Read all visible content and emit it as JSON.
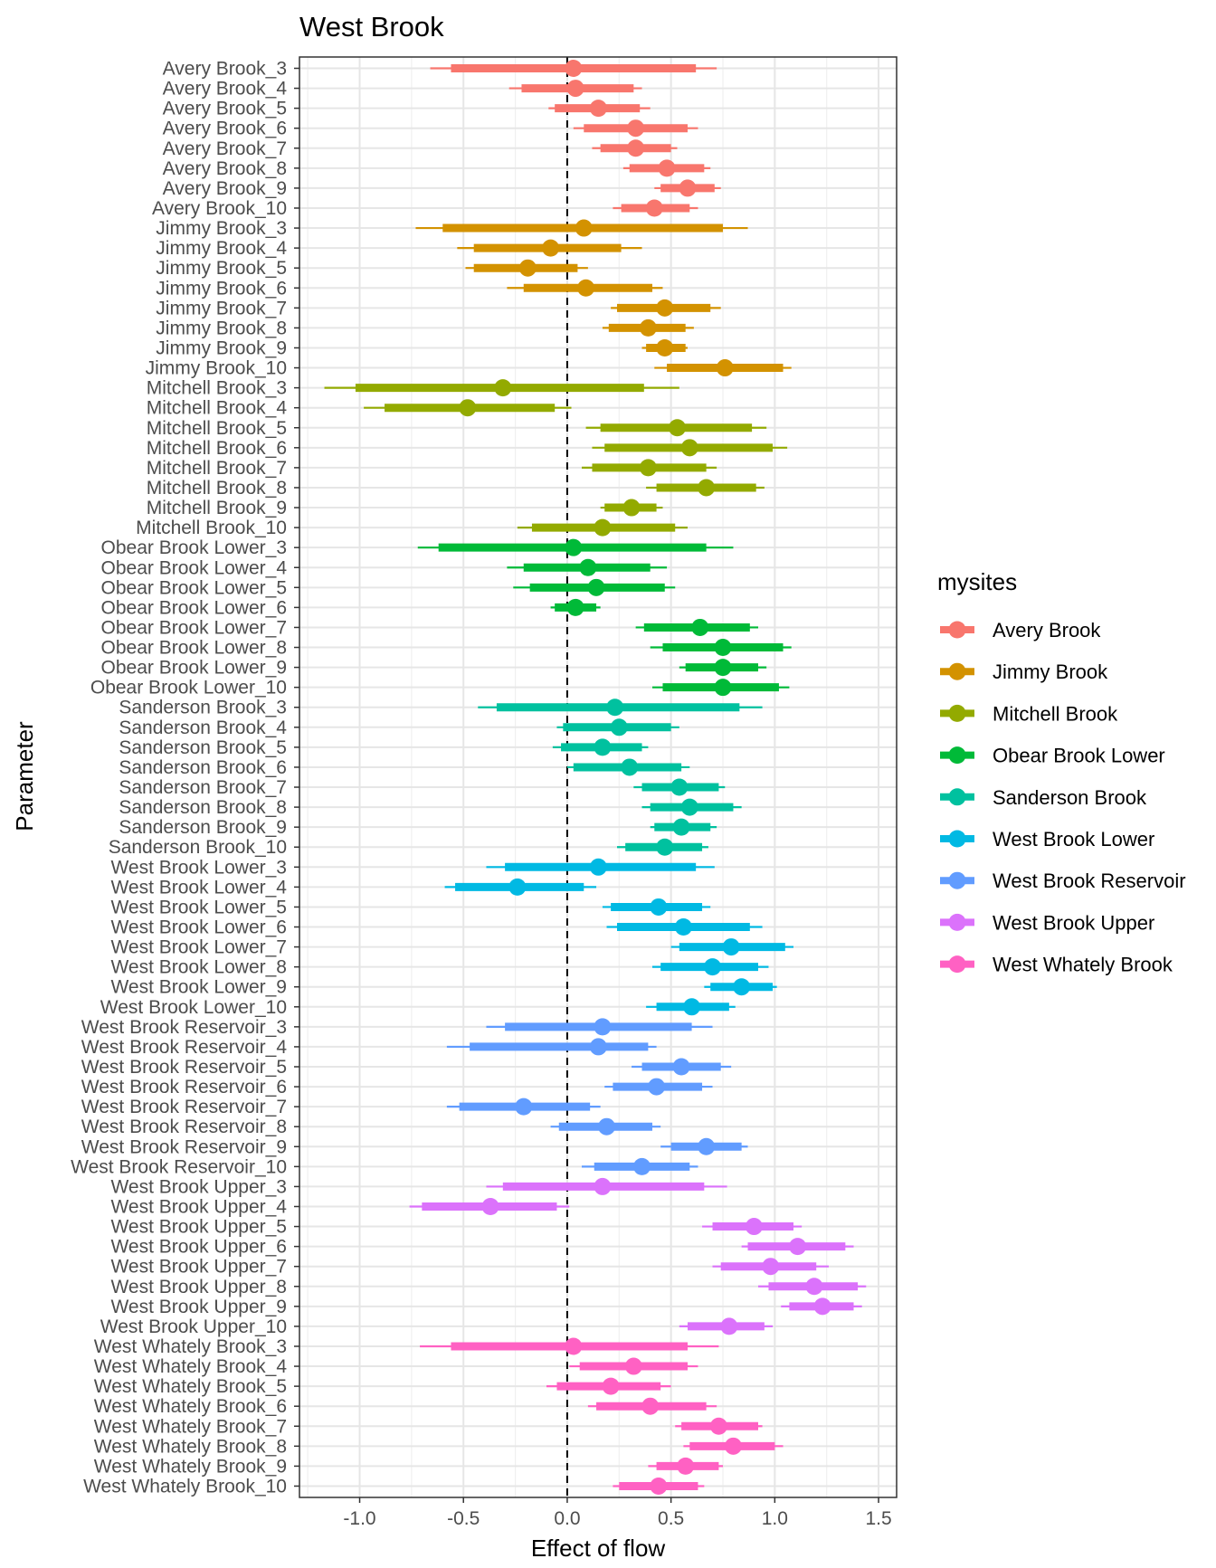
{
  "chart_data": {
    "type": "interval",
    "title": "West Brook",
    "xlabel": "Effect of flow",
    "ylabel": "Parameter",
    "xlim": [
      -1.29,
      1.587
    ],
    "xticks": [
      "-1.0",
      "-0.5",
      "0.0",
      "0.5",
      "1.0",
      "1.5"
    ],
    "xtick_values": [
      -1.0,
      -0.5,
      0.0,
      0.5,
      1.0,
      1.5
    ],
    "reference_line": 0,
    "grid": true,
    "legend": {
      "title": "mysites",
      "placement": "right"
    },
    "value_order": [
      "outer_low",
      "inner_low",
      "median",
      "inner_high",
      "outer_high"
    ],
    "series": [
      {
        "name": "Avery Brook",
        "color": "#F8766D",
        "parameters": [
          {
            "label": "Avery Brook_3",
            "values": [
              -0.66,
              -0.56,
              0.03,
              0.62,
              0.72
            ]
          },
          {
            "label": "Avery Brook_4",
            "values": [
              -0.28,
              -0.22,
              0.04,
              0.32,
              0.36
            ]
          },
          {
            "label": "Avery Brook_5",
            "values": [
              -0.09,
              -0.06,
              0.15,
              0.35,
              0.4
            ]
          },
          {
            "label": "Avery Brook_6",
            "values": [
              0.03,
              0.08,
              0.33,
              0.58,
              0.63
            ]
          },
          {
            "label": "Avery Brook_7",
            "values": [
              0.12,
              0.16,
              0.33,
              0.5,
              0.53
            ]
          },
          {
            "label": "Avery Brook_8",
            "values": [
              0.27,
              0.3,
              0.48,
              0.66,
              0.69
            ]
          },
          {
            "label": "Avery Brook_9",
            "values": [
              0.42,
              0.45,
              0.58,
              0.71,
              0.74
            ]
          },
          {
            "label": "Avery Brook_10",
            "values": [
              0.22,
              0.26,
              0.42,
              0.59,
              0.63
            ]
          }
        ]
      },
      {
        "name": "Jimmy Brook",
        "color": "#D39200",
        "parameters": [
          {
            "label": "Jimmy Brook_3",
            "values": [
              -0.73,
              -0.6,
              0.08,
              0.75,
              0.87
            ]
          },
          {
            "label": "Jimmy Brook_4",
            "values": [
              -0.53,
              -0.45,
              -0.08,
              0.26,
              0.36
            ]
          },
          {
            "label": "Jimmy Brook_5",
            "values": [
              -0.49,
              -0.45,
              -0.19,
              0.05,
              0.1
            ]
          },
          {
            "label": "Jimmy Brook_6",
            "values": [
              -0.29,
              -0.21,
              0.09,
              0.41,
              0.46
            ]
          },
          {
            "label": "Jimmy Brook_7",
            "values": [
              0.21,
              0.24,
              0.47,
              0.69,
              0.74
            ]
          },
          {
            "label": "Jimmy Brook_8",
            "values": [
              0.17,
              0.2,
              0.39,
              0.57,
              0.61
            ]
          },
          {
            "label": "Jimmy Brook_9",
            "values": [
              0.36,
              0.38,
              0.47,
              0.57,
              0.58
            ]
          },
          {
            "label": "Jimmy Brook_10",
            "values": [
              0.42,
              0.48,
              0.76,
              1.04,
              1.08
            ]
          }
        ]
      },
      {
        "name": "Mitchell Brook",
        "color": "#93AA00",
        "parameters": [
          {
            "label": "Mitchell Brook_3",
            "values": [
              -1.17,
              -1.02,
              -0.31,
              0.37,
              0.54
            ]
          },
          {
            "label": "Mitchell Brook_4",
            "values": [
              -0.98,
              -0.88,
              -0.48,
              -0.06,
              0.02
            ]
          },
          {
            "label": "Mitchell Brook_5",
            "values": [
              0.09,
              0.16,
              0.53,
              0.89,
              0.96
            ]
          },
          {
            "label": "Mitchell Brook_6",
            "values": [
              0.12,
              0.18,
              0.59,
              0.99,
              1.06
            ]
          },
          {
            "label": "Mitchell Brook_7",
            "values": [
              0.07,
              0.12,
              0.39,
              0.67,
              0.72
            ]
          },
          {
            "label": "Mitchell Brook_8",
            "values": [
              0.38,
              0.43,
              0.67,
              0.91,
              0.95
            ]
          },
          {
            "label": "Mitchell Brook_9",
            "values": [
              0.16,
              0.18,
              0.31,
              0.43,
              0.46
            ]
          },
          {
            "label": "Mitchell Brook_10",
            "values": [
              -0.24,
              -0.17,
              0.17,
              0.52,
              0.58
            ]
          }
        ]
      },
      {
        "name": "Obear Brook Lower",
        "color": "#00BA38",
        "parameters": [
          {
            "label": "Obear Brook Lower_3",
            "values": [
              -0.72,
              -0.62,
              0.03,
              0.67,
              0.8
            ]
          },
          {
            "label": "Obear Brook Lower_4",
            "values": [
              -0.29,
              -0.21,
              0.1,
              0.4,
              0.48
            ]
          },
          {
            "label": "Obear Brook Lower_5",
            "values": [
              -0.26,
              -0.18,
              0.14,
              0.47,
              0.52
            ]
          },
          {
            "label": "Obear Brook Lower_6",
            "values": [
              -0.08,
              -0.06,
              0.04,
              0.14,
              0.16
            ]
          },
          {
            "label": "Obear Brook Lower_7",
            "values": [
              0.33,
              0.37,
              0.64,
              0.88,
              0.92
            ]
          },
          {
            "label": "Obear Brook Lower_8",
            "values": [
              0.4,
              0.46,
              0.75,
              1.04,
              1.08
            ]
          },
          {
            "label": "Obear Brook Lower_9",
            "values": [
              0.54,
              0.57,
              0.75,
              0.92,
              0.96
            ]
          },
          {
            "label": "Obear Brook Lower_10",
            "values": [
              0.41,
              0.46,
              0.75,
              1.02,
              1.07
            ]
          }
        ]
      },
      {
        "name": "Sanderson Brook",
        "color": "#00C19F",
        "parameters": [
          {
            "label": "Sanderson Brook_3",
            "values": [
              -0.43,
              -0.34,
              0.23,
              0.83,
              0.94
            ]
          },
          {
            "label": "Sanderson Brook_4",
            "values": [
              -0.05,
              -0.02,
              0.25,
              0.5,
              0.54
            ]
          },
          {
            "label": "Sanderson Brook_5",
            "values": [
              -0.07,
              -0.03,
              0.17,
              0.36,
              0.39
            ]
          },
          {
            "label": "Sanderson Brook_6",
            "values": [
              0.0,
              0.03,
              0.3,
              0.55,
              0.59
            ]
          },
          {
            "label": "Sanderson Brook_7",
            "values": [
              0.32,
              0.36,
              0.54,
              0.73,
              0.76
            ]
          },
          {
            "label": "Sanderson Brook_8",
            "values": [
              0.36,
              0.4,
              0.59,
              0.8,
              0.84
            ]
          },
          {
            "label": "Sanderson Brook_9",
            "values": [
              0.4,
              0.42,
              0.55,
              0.69,
              0.72
            ]
          },
          {
            "label": "Sanderson Brook_10",
            "values": [
              0.24,
              0.28,
              0.47,
              0.65,
              0.68
            ]
          }
        ]
      },
      {
        "name": "West Brook Lower",
        "color": "#00B9E3",
        "parameters": [
          {
            "label": "West Brook Lower_3",
            "values": [
              -0.39,
              -0.3,
              0.15,
              0.62,
              0.71
            ]
          },
          {
            "label": "West Brook Lower_4",
            "values": [
              -0.59,
              -0.54,
              -0.24,
              0.08,
              0.14
            ]
          },
          {
            "label": "West Brook Lower_5",
            "values": [
              0.17,
              0.21,
              0.44,
              0.65,
              0.69
            ]
          },
          {
            "label": "West Brook Lower_6",
            "values": [
              0.19,
              0.24,
              0.56,
              0.88,
              0.94
            ]
          },
          {
            "label": "West Brook Lower_7",
            "values": [
              0.5,
              0.54,
              0.79,
              1.05,
              1.09
            ]
          },
          {
            "label": "West Brook Lower_8",
            "values": [
              0.41,
              0.45,
              0.7,
              0.92,
              0.97
            ]
          },
          {
            "label": "West Brook Lower_9",
            "values": [
              0.66,
              0.69,
              0.84,
              0.99,
              1.01
            ]
          },
          {
            "label": "West Brook Lower_10",
            "values": [
              0.38,
              0.43,
              0.6,
              0.78,
              0.81
            ]
          }
        ]
      },
      {
        "name": "West Brook Reservoir",
        "color": "#619CFF",
        "parameters": [
          {
            "label": "West Brook Reservoir_3",
            "values": [
              -0.39,
              -0.3,
              0.17,
              0.6,
              0.7
            ]
          },
          {
            "label": "West Brook Reservoir_4",
            "values": [
              -0.58,
              -0.47,
              0.15,
              0.39,
              0.43
            ]
          },
          {
            "label": "West Brook Reservoir_5",
            "values": [
              0.31,
              0.36,
              0.55,
              0.74,
              0.79
            ]
          },
          {
            "label": "West Brook Reservoir_6",
            "values": [
              0.18,
              0.22,
              0.43,
              0.65,
              0.7
            ]
          },
          {
            "label": "West Brook Reservoir_7",
            "values": [
              -0.58,
              -0.52,
              -0.21,
              0.11,
              0.16
            ]
          },
          {
            "label": "West Brook Reservoir_8",
            "values": [
              -0.08,
              -0.04,
              0.19,
              0.41,
              0.45
            ]
          },
          {
            "label": "West Brook Reservoir_9",
            "values": [
              0.45,
              0.5,
              0.67,
              0.84,
              0.87
            ]
          },
          {
            "label": "West Brook Reservoir_10",
            "values": [
              0.07,
              0.13,
              0.36,
              0.59,
              0.63
            ]
          }
        ]
      },
      {
        "name": "West Brook Upper",
        "color": "#DB72FB",
        "parameters": [
          {
            "label": "West Brook Upper_3",
            "values": [
              -0.39,
              -0.31,
              0.17,
              0.66,
              0.77
            ]
          },
          {
            "label": "West Brook Upper_4",
            "values": [
              -0.76,
              -0.7,
              -0.37,
              -0.05,
              0.01
            ]
          },
          {
            "label": "West Brook Upper_5",
            "values": [
              0.65,
              0.7,
              0.9,
              1.09,
              1.13
            ]
          },
          {
            "label": "West Brook Upper_6",
            "values": [
              0.84,
              0.87,
              1.11,
              1.34,
              1.38
            ]
          },
          {
            "label": "West Brook Upper_7",
            "values": [
              0.7,
              0.74,
              0.98,
              1.2,
              1.26
            ]
          },
          {
            "label": "West Brook Upper_8",
            "values": [
              0.92,
              0.97,
              1.19,
              1.4,
              1.44
            ]
          },
          {
            "label": "West Brook Upper_9",
            "values": [
              1.03,
              1.07,
              1.23,
              1.38,
              1.42
            ]
          },
          {
            "label": "West Brook Upper_10",
            "values": [
              0.54,
              0.58,
              0.78,
              0.95,
              0.99
            ]
          }
        ]
      },
      {
        "name": "West Whately Brook",
        "color": "#FF61C3",
        "parameters": [
          {
            "label": "West Whately Brook_3",
            "values": [
              -0.71,
              -0.56,
              0.03,
              0.58,
              0.73
            ]
          },
          {
            "label": "West Whately Brook_4",
            "values": [
              0.01,
              0.06,
              0.32,
              0.58,
              0.63
            ]
          },
          {
            "label": "West Whately Brook_5",
            "values": [
              -0.1,
              -0.05,
              0.21,
              0.45,
              0.5
            ]
          },
          {
            "label": "West Whately Brook_6",
            "values": [
              0.1,
              0.14,
              0.4,
              0.67,
              0.72
            ]
          },
          {
            "label": "West Whately Brook_7",
            "values": [
              0.52,
              0.55,
              0.73,
              0.92,
              0.94
            ]
          },
          {
            "label": "West Whately Brook_8",
            "values": [
              0.56,
              0.59,
              0.8,
              1.0,
              1.04
            ]
          },
          {
            "label": "West Whately Brook_9",
            "values": [
              0.39,
              0.43,
              0.57,
              0.73,
              0.75
            ]
          },
          {
            "label": "West Whately Brook_10",
            "values": [
              0.22,
              0.25,
              0.44,
              0.63,
              0.66
            ]
          }
        ]
      }
    ]
  }
}
